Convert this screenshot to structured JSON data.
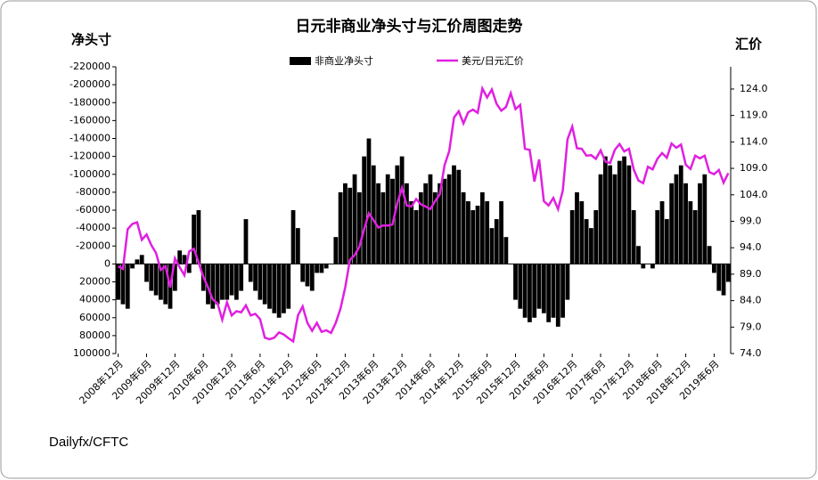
{
  "chart_data": {
    "type": "combo",
    "title": "日元非商业净头寸与汇价周图走势",
    "y_label": "净头寸",
    "y2_label": "汇价",
    "source": "Dailyfx/CFTC",
    "legend": "top",
    "categories": [
      "2008年12月",
      null,
      null,
      null,
      null,
      null,
      "2009年6月",
      null,
      null,
      null,
      null,
      null,
      "2009年12月",
      null,
      null,
      null,
      null,
      null,
      "2010年6月",
      null,
      null,
      null,
      null,
      null,
      "2010年12月",
      null,
      null,
      null,
      null,
      null,
      "2011年6月",
      null,
      null,
      null,
      null,
      null,
      "2011年12月",
      null,
      null,
      null,
      null,
      null,
      "2012年6月",
      null,
      null,
      null,
      null,
      null,
      "2012年12月",
      null,
      null,
      null,
      null,
      null,
      "2013年6月",
      null,
      null,
      null,
      null,
      null,
      "2013年12月",
      null,
      null,
      null,
      null,
      null,
      "2014年6月",
      null,
      null,
      null,
      null,
      null,
      "2014年12月",
      null,
      null,
      null,
      null,
      null,
      "2015年6月",
      null,
      null,
      null,
      null,
      null,
      "2015年12月",
      null,
      null,
      null,
      null,
      null,
      "2016年6月",
      null,
      null,
      null,
      null,
      null,
      "2016年12月",
      null,
      null,
      null,
      null,
      null,
      "2017年6月",
      null,
      null,
      null,
      null,
      null,
      "2017年12月",
      null,
      null,
      null,
      null,
      null,
      "2018年6月",
      null,
      null,
      null,
      null,
      null,
      "2018年12月",
      null,
      null,
      null,
      null,
      null,
      "2019年6月",
      null,
      null,
      null
    ],
    "series": [
      {
        "name": "非商业净头寸",
        "type": "bar",
        "color": "#000000",
        "values": [
          40000,
          45000,
          50000,
          5000,
          -5000,
          -10000,
          20000,
          30000,
          35000,
          40000,
          45000,
          50000,
          30000,
          -15000,
          -10000,
          10000,
          -55000,
          -60000,
          30000,
          45000,
          50000,
          45000,
          40000,
          40000,
          35000,
          40000,
          30000,
          -50000,
          20000,
          30000,
          40000,
          45000,
          50000,
          55000,
          60000,
          55000,
          50000,
          -60000,
          -40000,
          20000,
          25000,
          30000,
          10000,
          10000,
          5000,
          0,
          -30000,
          -80000,
          -90000,
          -85000,
          -100000,
          -80000,
          -120000,
          -140000,
          -110000,
          -90000,
          -80000,
          -100000,
          -95000,
          -110000,
          -120000,
          -90000,
          -70000,
          -60000,
          -80000,
          -90000,
          -100000,
          -80000,
          -90000,
          -95000,
          -100000,
          -110000,
          -105000,
          -80000,
          -70000,
          -60000,
          -65000,
          -80000,
          -70000,
          -40000,
          -50000,
          -70000,
          -30000,
          0,
          40000,
          50000,
          60000,
          65000,
          60000,
          50000,
          55000,
          65000,
          60000,
          70000,
          60000,
          40000,
          -60000,
          -80000,
          -70000,
          -50000,
          -40000,
          -60000,
          -100000,
          -120000,
          -110000,
          -100000,
          -115000,
          -120000,
          -110000,
          -60000,
          -20000,
          5000,
          0,
          5000,
          -60000,
          -70000,
          -50000,
          -90000,
          -100000,
          -110000,
          -90000,
          -70000,
          -60000,
          -90000,
          -100000,
          -20000,
          10000,
          30000,
          35000,
          20000
        ]
      },
      {
        "name": "美元/日元汇价",
        "type": "line",
        "axis": "y2",
        "color": "#e020e0",
        "values": [
          90.5,
          90,
          97.5,
          98.5,
          98.8,
          95.5,
          96.5,
          94.5,
          93,
          89.8,
          90.5,
          86.5,
          92,
          90.3,
          88.8,
          93.3,
          93.8,
          91.2,
          88.5,
          86.5,
          84.2,
          83.5,
          80.4,
          83.7,
          81.2,
          82,
          81.8,
          83.1,
          81.2,
          81.5,
          80.5,
          77,
          76.7,
          77,
          78,
          77.6,
          76.9,
          76.3,
          81.2,
          82.9,
          79.8,
          78.3,
          79.8,
          78.1,
          78.4,
          77.9,
          79.8,
          82.5,
          86.5,
          91.7,
          92.6,
          94.2,
          97.5,
          100.5,
          99.2,
          97.8,
          98.2,
          98.2,
          98.4,
          102.4,
          105.3,
          102,
          101.8,
          103.2,
          102.2,
          101.8,
          101.3,
          102.8,
          104.1,
          109.6,
          112.3,
          118.6,
          119.8,
          117.5,
          119.6,
          120.1,
          119.5,
          124.1,
          122.4,
          123.9,
          121.2,
          119.9,
          120.6,
          123.2,
          120.2,
          121,
          112.7,
          112.5,
          106.5,
          110.7,
          102.8,
          102,
          103.4,
          101.3,
          104.8,
          114.5,
          116.9,
          112.8,
          112.7,
          111.4,
          111.5,
          110.8,
          112.4,
          110.3,
          110,
          112.5,
          113.6,
          112.2,
          112.7,
          108.8,
          106.7,
          106.2,
          109.3,
          108.8,
          110.8,
          111.9,
          111,
          113.7,
          112.9,
          113.5,
          109.7,
          108.9,
          111.4,
          110.9,
          111.4,
          108.3,
          107.9,
          108.7,
          106.3,
          108.1
        ]
      }
    ],
    "ylim": [
      -220000,
      100000
    ],
    "y_inverted": true,
    "yticks": [
      -220000,
      -200000,
      -180000,
      -160000,
      -140000,
      -120000,
      -100000,
      -80000,
      -60000,
      -40000,
      -20000,
      0,
      20000,
      40000,
      60000,
      80000,
      100000
    ],
    "y2lim": [
      74,
      128.2
    ],
    "y2ticks": [
      {
        "value": 74,
        "label": "74.0"
      },
      {
        "value": 79,
        "label": "79.0"
      },
      {
        "value": 84,
        "label": "84.0"
      },
      {
        "value": 89,
        "label": "89.0"
      },
      {
        "value": 94,
        "label": "94.0"
      },
      {
        "value": 99,
        "label": "99.0"
      },
      {
        "value": 104,
        "label": "104.0"
      },
      {
        "value": 109,
        "label": "109.0"
      },
      {
        "value": 114,
        "label": "114.0"
      },
      {
        "value": 119,
        "label": "119.0"
      },
      {
        "value": 124,
        "label": "124.0"
      }
    ]
  }
}
